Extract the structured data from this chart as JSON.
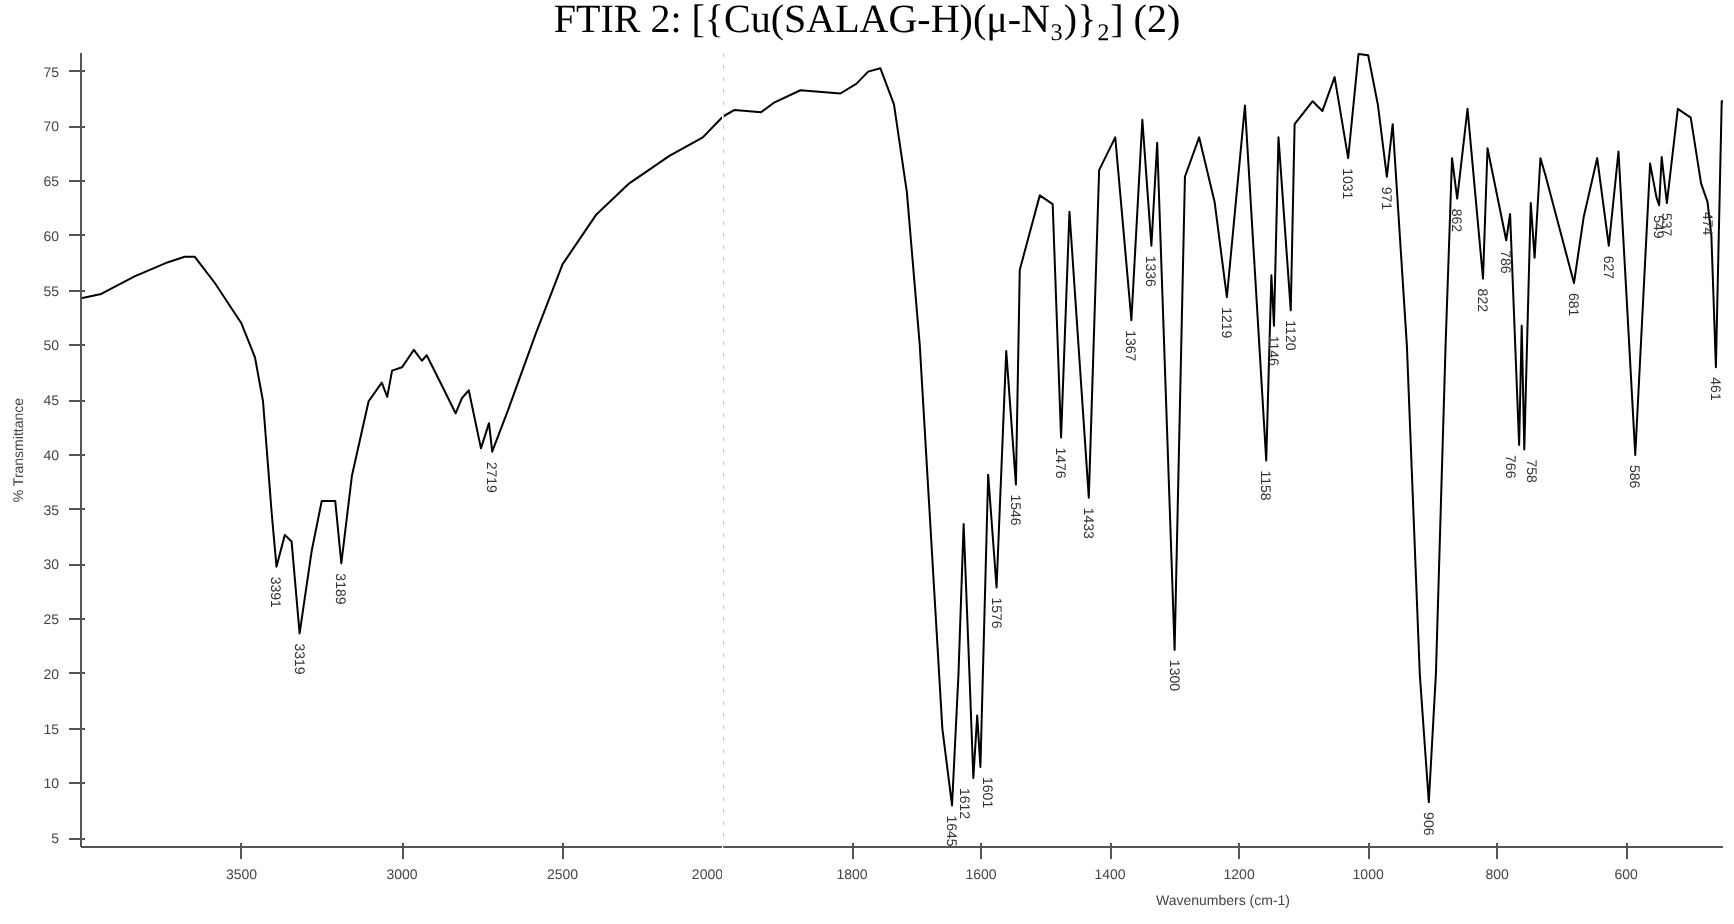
{
  "chart_data": [
    {
      "type": "line",
      "title": "FTIR 2: [{Cu(SALAG-H)(μ-N₃)}₂] (2)",
      "ylabel": "% Transmittance",
      "color": "#000000",
      "x": [
        4000,
        3937,
        3833,
        3729,
        3677,
        3646,
        3583,
        3500,
        3458,
        3433,
        3406,
        3391,
        3365,
        3344,
        3319,
        3281,
        3250,
        3208,
        3189,
        3156,
        3104,
        3063,
        3046,
        3031,
        3000,
        2963,
        2938,
        2923,
        2875,
        2833,
        2813,
        2792,
        2754,
        2729,
        2719,
        2667,
        2583,
        2500,
        2396,
        2292,
        2167,
        2063,
        2000
      ],
      "values": [
        54.3,
        54.7,
        56.3,
        57.6,
        58.1,
        58.1,
        55.7,
        52.0,
        48.9,
        44.9,
        34.7,
        29.8,
        32.7,
        32.1,
        23.7,
        31.3,
        35.8,
        35.8,
        30.1,
        38.1,
        44.9,
        46.6,
        45.3,
        47.7,
        48.0,
        49.6,
        48.6,
        49.1,
        46.3,
        43.8,
        45.2,
        45.9,
        40.6,
        42.9,
        40.3,
        44.3,
        51.1,
        57.4,
        61.9,
        64.8,
        67.3,
        69.0,
        70.9
      ],
      "xlim": [
        4000,
        2000
      ],
      "ylim": [
        4.2,
        76.7
      ],
      "xticks": [
        3500,
        3000,
        2500,
        2000
      ],
      "yticks": [
        5,
        10,
        15,
        20,
        25,
        30,
        35,
        40,
        45,
        50,
        55,
        60,
        65,
        70,
        75
      ],
      "annotations": [
        {
          "text": "3391",
          "x": 3391,
          "y": 29.8
        },
        {
          "text": "3319",
          "x": 3319,
          "y": 23.7
        },
        {
          "text": "3189",
          "x": 3189,
          "y": 30.1
        },
        {
          "text": "2719",
          "x": 2719,
          "y": 40.3
        }
      ]
    },
    {
      "type": "line",
      "xlabel": "Wavenumbers (cm-1)",
      "color": "#000000",
      "tick_labels": "x",
      "x": [
        2000,
        1982,
        1941,
        1920,
        1880,
        1818,
        1793,
        1775,
        1756,
        1735,
        1715,
        1695,
        1675,
        1660,
        1645,
        1635,
        1627,
        1618,
        1612,
        1606,
        1601,
        1589,
        1576,
        1561,
        1546,
        1540,
        1509,
        1489,
        1476,
        1463,
        1433,
        1417,
        1392,
        1367,
        1350,
        1336,
        1327,
        1300,
        1284,
        1262,
        1238,
        1219,
        1191,
        1158,
        1150,
        1146,
        1139,
        1120,
        1114,
        1086,
        1071,
        1052,
        1031,
        1015,
        1000,
        985,
        971,
        962,
        940,
        920,
        906,
        895,
        880,
        870,
        862,
        846,
        822,
        815,
        786,
        780,
        766,
        762,
        758,
        748,
        742,
        733,
        725,
        681,
        666,
        645,
        627,
        612,
        600,
        586,
        563,
        553,
        549,
        545,
        537,
        520,
        500,
        484,
        474,
        468,
        461,
        452,
        450
      ],
      "values": [
        70.9,
        71.5,
        71.3,
        72.2,
        73.3,
        73.0,
        73.9,
        75.0,
        75.3,
        72,
        64,
        50,
        30,
        15,
        8.0,
        20,
        33.7,
        20,
        10.5,
        16.2,
        11.5,
        38.2,
        27.9,
        49.5,
        37.3,
        56.9,
        63.7,
        62.9,
        41.6,
        62.2,
        36.1,
        66.0,
        69.0,
        52.3,
        70.6,
        59.1,
        68.5,
        22.2,
        65.4,
        69.0,
        63.1,
        54.4,
        71.9,
        39.5,
        56.4,
        51.8,
        69.0,
        53.2,
        70.2,
        72.3,
        71.4,
        74.5,
        67.1,
        76.6,
        76.5,
        72,
        65.4,
        70.2,
        50,
        20,
        8.3,
        20,
        50,
        67.1,
        63.4,
        71.6,
        56.1,
        68.0,
        59.6,
        62.0,
        40.9,
        51.8,
        40.5,
        63.0,
        58.0,
        67.1,
        65.5,
        55.7,
        61.7,
        67.1,
        59.1,
        67.7,
        55,
        40.0,
        66.6,
        63.5,
        62.8,
        67.2,
        63.0,
        71.6,
        70.8,
        64.8,
        63.1,
        60,
        48.0,
        72.3,
        72.3
      ],
      "xlim": [
        2000,
        450
      ],
      "ylim": [
        4.2,
        76.7
      ],
      "xticks": [
        1800,
        1600,
        1400,
        1200,
        1000,
        800,
        600
      ],
      "ref_lines": [
        {
          "axis": "x",
          "value": 2000,
          "color": "#c8c8c8",
          "line_style": "dotted"
        }
      ],
      "annotations": [
        {
          "text": "1645",
          "x": 1645,
          "y": 8.0
        },
        {
          "text": "1612",
          "x": 1612,
          "y": 10.5
        },
        {
          "text": "1601",
          "x": 1601,
          "y": 11.5
        },
        {
          "text": "1576",
          "x": 1576,
          "y": 27.9
        },
        {
          "text": "1546",
          "x": 1546,
          "y": 37.3
        },
        {
          "text": "1476",
          "x": 1476,
          "y": 41.6
        },
        {
          "text": "1433",
          "x": 1433,
          "y": 36.1
        },
        {
          "text": "1367",
          "x": 1367,
          "y": 52.3
        },
        {
          "text": "1336",
          "x": 1336,
          "y": 59.1
        },
        {
          "text": "1300",
          "x": 1300,
          "y": 22.2
        },
        {
          "text": "1219",
          "x": 1219,
          "y": 54.4
        },
        {
          "text": "1158",
          "x": 1158,
          "y": 39.5
        },
        {
          "text": "1146",
          "x": 1146,
          "y": 51.8
        },
        {
          "text": "1120",
          "x": 1120,
          "y": 53.2
        },
        {
          "text": "1031",
          "x": 1031,
          "y": 67.1
        },
        {
          "text": "971",
          "x": 971,
          "y": 65.4
        },
        {
          "text": "906",
          "x": 906,
          "y": 8.3
        },
        {
          "text": "862",
          "x": 862,
          "y": 63.4
        },
        {
          "text": "822",
          "x": 822,
          "y": 56.1
        },
        {
          "text": "786",
          "x": 786,
          "y": 59.6
        },
        {
          "text": "766",
          "x": 766,
          "y": 40.9
        },
        {
          "text": "758",
          "x": 758,
          "y": 40.5
        },
        {
          "text": "681",
          "x": 681,
          "y": 55.7
        },
        {
          "text": "627",
          "x": 627,
          "y": 59.1
        },
        {
          "text": "586",
          "x": 586,
          "y": 40.0
        },
        {
          "text": "549",
          "x": 549,
          "y": 62.8
        },
        {
          "text": "537",
          "x": 537,
          "y": 63.0
        },
        {
          "text": "474",
          "x": 474,
          "y": 63.1
        },
        {
          "text": "461",
          "x": 461,
          "y": 48.0
        }
      ]
    }
  ]
}
